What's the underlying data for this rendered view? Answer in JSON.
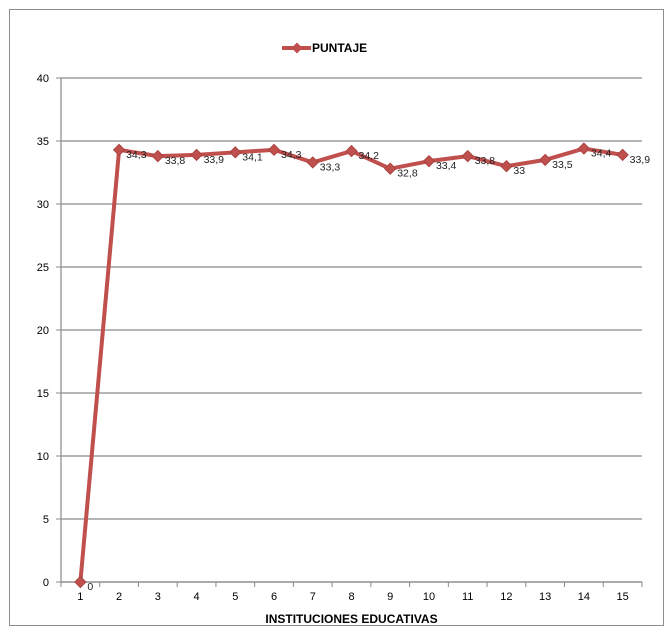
{
  "chart_data": {
    "type": "line",
    "title": "",
    "xlabel": "INSTITUCIONES EDUCATIVAS",
    "ylabel": "",
    "categories": [
      "1",
      "2",
      "3",
      "4",
      "5",
      "6",
      "7",
      "8",
      "9",
      "10",
      "11",
      "12",
      "13",
      "14",
      "15"
    ],
    "series": [
      {
        "name": "PUNTAJE",
        "color": "#c0504d",
        "values": [
          0,
          34.3,
          33.8,
          33.9,
          34.1,
          34.3,
          33.3,
          34.2,
          32.8,
          33.4,
          33.8,
          33,
          33.5,
          34.4,
          33.9
        ],
        "data_labels": [
          "0",
          "34,3",
          "33,8",
          "33,9",
          "34,1",
          "34,3",
          "33,3",
          "34,2",
          "32,8",
          "33,4",
          "33,8",
          "33",
          "33,5",
          "34,4",
          "33,9"
        ]
      }
    ],
    "ylim": [
      0,
      40
    ],
    "yticks": [
      "0",
      "5",
      "10",
      "15",
      "20",
      "25",
      "30",
      "35",
      "40"
    ],
    "grid": true,
    "legend": "top-center",
    "marker": "diamond-icon"
  }
}
